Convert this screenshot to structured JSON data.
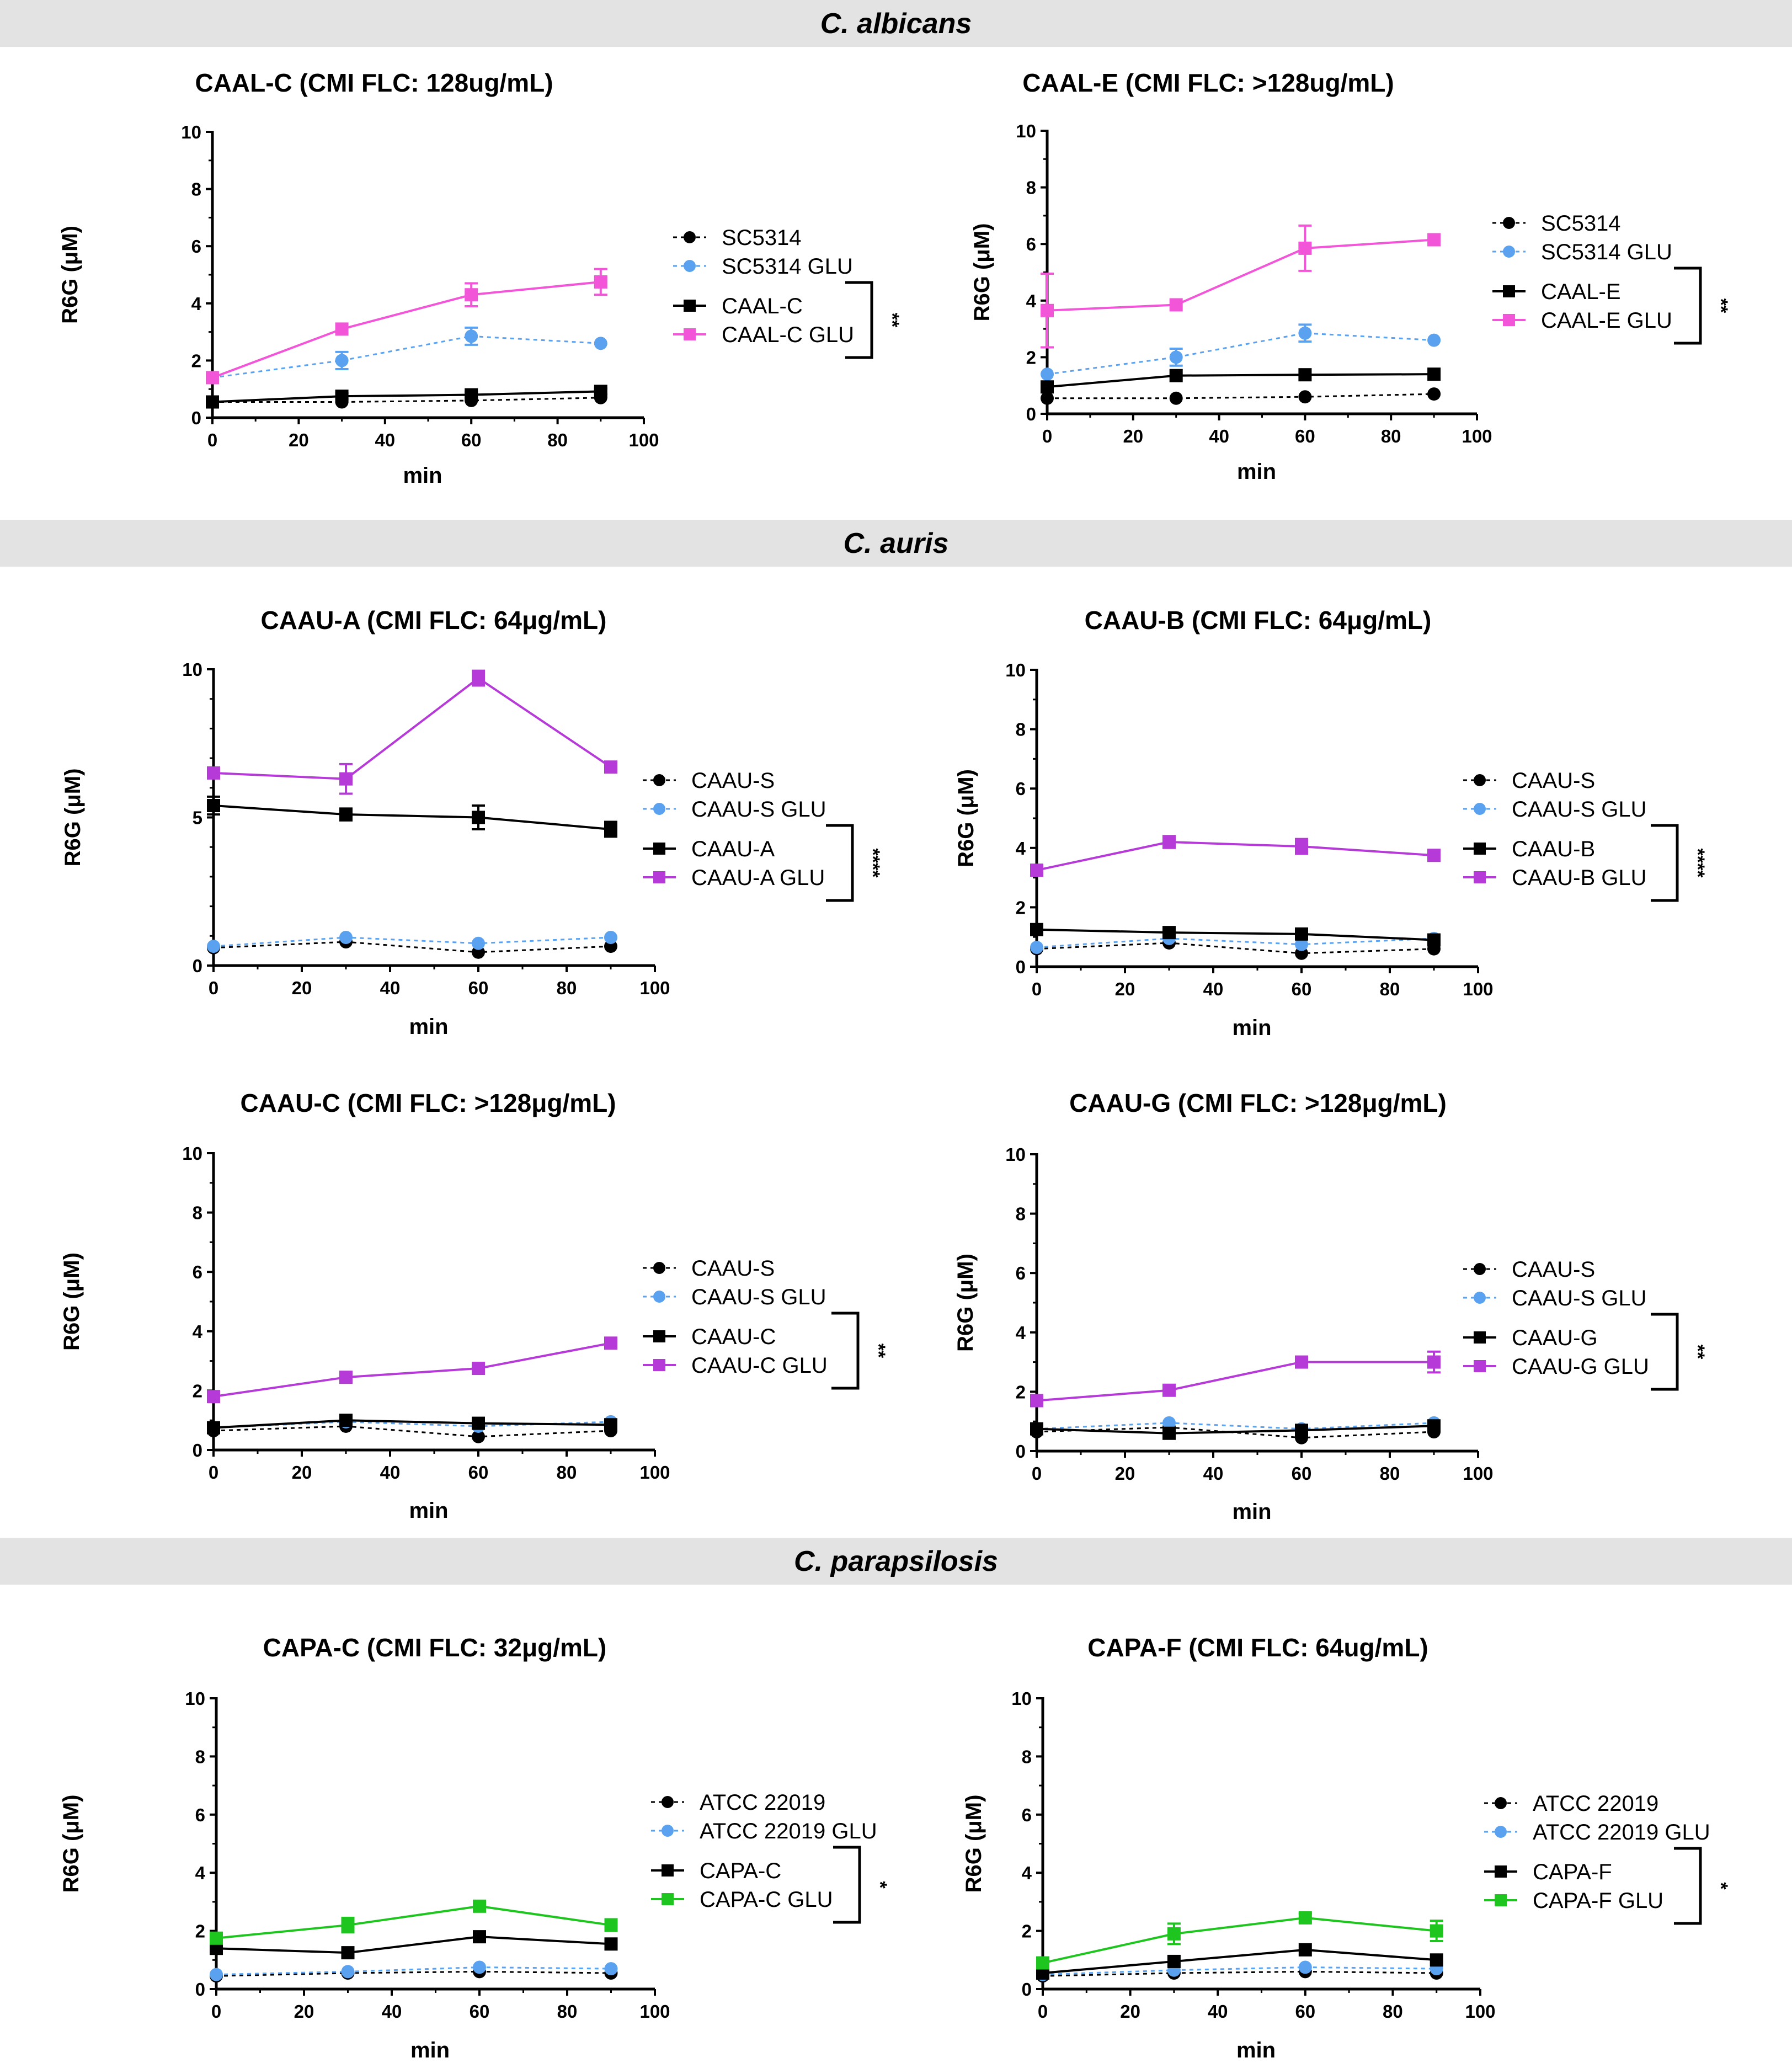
{
  "sections": [
    "C. albicans",
    "C. auris",
    "C. parapsilosis"
  ],
  "colors": {
    "black": "#000000",
    "blue": "#5aa2f0",
    "pink": "#f255d8",
    "purple": "#b63ad8",
    "green": "#1fc51f"
  },
  "chart_data": [
    {
      "type": "line",
      "title": "CAAL-C (CMI FLC: 128ug/mL)",
      "xlabel": "min",
      "ylabel": "R6G (μM)",
      "xlim": [
        0,
        100
      ],
      "ylim": [
        0,
        10
      ],
      "xticks": [
        "0",
        "20",
        "40",
        "60",
        "80",
        "100"
      ],
      "yticks": [
        "0",
        "2",
        "4",
        "6",
        "8",
        "10"
      ],
      "x": [
        0,
        30,
        60,
        90
      ],
      "series": [
        {
          "name": "SC5314",
          "values": [
            0.55,
            0.55,
            0.6,
            0.7
          ],
          "color": "black",
          "marker": "circle",
          "dashed": true
        },
        {
          "name": "SC5314 GLU",
          "values": [
            1.4,
            2.0,
            2.85,
            2.6
          ],
          "errors": [
            0,
            0.3,
            0.3,
            0
          ],
          "color": "blue",
          "marker": "circle",
          "dashed": true
        },
        {
          "name": "CAAL-C",
          "values": [
            0.55,
            0.75,
            0.8,
            0.92
          ],
          "errors": [
            0,
            0.1,
            0.1,
            0.1
          ],
          "color": "black",
          "marker": "square",
          "dashed": false
        },
        {
          "name": "CAAL-C GLU",
          "values": [
            1.4,
            3.1,
            4.3,
            4.75
          ],
          "errors": [
            0,
            0,
            0.4,
            0.45
          ],
          "color": "pink",
          "marker": "square",
          "dashed": false
        }
      ],
      "significance": "**"
    },
    {
      "type": "line",
      "title": "CAAL-E (CMI FLC: >128ug/mL)",
      "xlabel": "min",
      "ylabel": "R6G (μM)",
      "xlim": [
        0,
        100
      ],
      "ylim": [
        0,
        10
      ],
      "xticks": [
        "0",
        "20",
        "40",
        "60",
        "80",
        "100"
      ],
      "yticks": [
        "0",
        "2",
        "4",
        "6",
        "8",
        "10"
      ],
      "x": [
        0,
        30,
        60,
        90
      ],
      "series": [
        {
          "name": "SC5314",
          "values": [
            0.55,
            0.55,
            0.6,
            0.7
          ],
          "color": "black",
          "marker": "circle",
          "dashed": true
        },
        {
          "name": "SC5314 GLU",
          "values": [
            1.4,
            2.0,
            2.85,
            2.6
          ],
          "errors": [
            0,
            0.3,
            0.3,
            0
          ],
          "color": "blue",
          "marker": "circle",
          "dashed": true
        },
        {
          "name": "CAAL-E",
          "values": [
            0.95,
            1.35,
            1.38,
            1.4
          ],
          "color": "black",
          "marker": "square",
          "dashed": false
        },
        {
          "name": "CAAL-E GLU",
          "values": [
            3.65,
            3.85,
            5.85,
            6.15
          ],
          "errors": [
            1.3,
            0,
            0.8,
            0
          ],
          "color": "pink",
          "marker": "square",
          "dashed": false
        }
      ],
      "significance": "**"
    },
    {
      "type": "line",
      "title": "CAAU-A (CMI FLC: 64μg/mL)",
      "xlabel": "min",
      "ylabel": "R6G (μM)",
      "xlim": [
        0,
        100
      ],
      "ylim": [
        0,
        10
      ],
      "xticks": [
        "0",
        "20",
        "40",
        "60",
        "80",
        "100"
      ],
      "yticks": [
        "0",
        "5",
        "10"
      ],
      "x": [
        0,
        30,
        60,
        90
      ],
      "series": [
        {
          "name": "CAAU-S",
          "values": [
            0.6,
            0.8,
            0.45,
            0.65
          ],
          "color": "black",
          "marker": "circle",
          "dashed": true
        },
        {
          "name": "CAAU-S GLU",
          "values": [
            0.65,
            0.95,
            0.75,
            0.95
          ],
          "color": "blue",
          "marker": "circle",
          "dashed": true
        },
        {
          "name": "CAAU-A",
          "values": [
            5.4,
            5.1,
            5.0,
            4.6
          ],
          "errors": [
            0.3,
            0.2,
            0.4,
            0.25
          ],
          "color": "black",
          "marker": "square",
          "dashed": false
        },
        {
          "name": "CAAU-A GLU",
          "values": [
            6.5,
            6.3,
            9.7,
            6.7
          ],
          "errors": [
            0,
            0.5,
            0.25,
            0
          ],
          "color": "purple",
          "marker": "square",
          "dashed": false
        }
      ],
      "significance": "****"
    },
    {
      "type": "line",
      "title": "CAAU-B (CMI FLC: 64μg/mL)",
      "xlabel": "min",
      "ylabel": "R6G (μM)",
      "xlim": [
        0,
        100
      ],
      "ylim": [
        0,
        10
      ],
      "xticks": [
        "0",
        "20",
        "40",
        "60",
        "80",
        "100"
      ],
      "yticks": [
        "0",
        "2",
        "4",
        "6",
        "8",
        "10"
      ],
      "x": [
        0,
        30,
        60,
        90
      ],
      "series": [
        {
          "name": "CAAU-S",
          "values": [
            0.6,
            0.8,
            0.45,
            0.6
          ],
          "color": "black",
          "marker": "circle",
          "dashed": true
        },
        {
          "name": "CAAU-S GLU",
          "values": [
            0.65,
            0.95,
            0.75,
            0.95
          ],
          "color": "blue",
          "marker": "circle",
          "dashed": true
        },
        {
          "name": "CAAU-B",
          "values": [
            1.25,
            1.15,
            1.1,
            0.9
          ],
          "color": "black",
          "marker": "square",
          "dashed": false
        },
        {
          "name": "CAAU-B GLU",
          "values": [
            3.25,
            4.2,
            4.05,
            3.75
          ],
          "errors": [
            0,
            0.2,
            0.25,
            0
          ],
          "color": "purple",
          "marker": "square",
          "dashed": false
        }
      ],
      "significance": "****"
    },
    {
      "type": "line",
      "title": "CAAU-C (CMI FLC: >128μg/mL)",
      "xlabel": "min",
      "ylabel": "R6G (μM)",
      "xlim": [
        0,
        100
      ],
      "ylim": [
        0,
        10
      ],
      "xticks": [
        "0",
        "20",
        "40",
        "60",
        "80",
        "100"
      ],
      "yticks": [
        "0",
        "2",
        "4",
        "6",
        "8",
        "10"
      ],
      "x": [
        0,
        30,
        60,
        90
      ],
      "series": [
        {
          "name": "CAAU-S",
          "values": [
            0.65,
            0.8,
            0.45,
            0.65
          ],
          "color": "black",
          "marker": "circle",
          "dashed": true
        },
        {
          "name": "CAAU-S GLU",
          "values": [
            0.75,
            0.95,
            0.8,
            0.95
          ],
          "color": "blue",
          "marker": "circle",
          "dashed": true
        },
        {
          "name": "CAAU-C",
          "values": [
            0.75,
            1.0,
            0.9,
            0.85
          ],
          "color": "black",
          "marker": "square",
          "dashed": false
        },
        {
          "name": "CAAU-C GLU",
          "values": [
            1.8,
            2.45,
            2.75,
            3.6
          ],
          "color": "purple",
          "marker": "square",
          "dashed": false
        }
      ],
      "significance": "**"
    },
    {
      "type": "line",
      "title": "CAAU-G (CMI FLC: >128μg/mL)",
      "xlabel": "min",
      "ylabel": "R6G (μM)",
      "xlim": [
        0,
        100
      ],
      "ylim": [
        0,
        10
      ],
      "xticks": [
        "0",
        "20",
        "40",
        "60",
        "80",
        "100"
      ],
      "yticks": [
        "0",
        "2",
        "4",
        "6",
        "8",
        "10"
      ],
      "x": [
        0,
        30,
        60,
        90
      ],
      "series": [
        {
          "name": "CAAU-S",
          "values": [
            0.65,
            0.8,
            0.45,
            0.65
          ],
          "color": "black",
          "marker": "circle",
          "dashed": true
        },
        {
          "name": "CAAU-S GLU",
          "values": [
            0.75,
            0.95,
            0.75,
            0.95
          ],
          "color": "blue",
          "marker": "circle",
          "dashed": true
        },
        {
          "name": "CAAU-G",
          "values": [
            0.75,
            0.6,
            0.7,
            0.85
          ],
          "color": "black",
          "marker": "square",
          "dashed": false
        },
        {
          "name": "CAAU-G GLU",
          "values": [
            1.7,
            2.05,
            3.0,
            3.0
          ],
          "errors": [
            0,
            0,
            0,
            0.35
          ],
          "color": "purple",
          "marker": "square",
          "dashed": false
        }
      ],
      "significance": "**"
    },
    {
      "type": "line",
      "title": "CAPA-C (CMI FLC: 32μg/mL)",
      "xlabel": "min",
      "ylabel": "R6G (μM)",
      "xlim": [
        0,
        100
      ],
      "ylim": [
        0,
        10
      ],
      "xticks": [
        "0",
        "20",
        "40",
        "60",
        "80",
        "100"
      ],
      "yticks": [
        "0",
        "2",
        "4",
        "6",
        "8",
        "10"
      ],
      "x": [
        0,
        30,
        60,
        90
      ],
      "series": [
        {
          "name": "ATCC 22019",
          "values": [
            0.45,
            0.55,
            0.6,
            0.55
          ],
          "color": "black",
          "marker": "circle",
          "dashed": true
        },
        {
          "name": "ATCC 22019 GLU",
          "values": [
            0.5,
            0.6,
            0.75,
            0.7
          ],
          "color": "blue",
          "marker": "circle",
          "dashed": true
        },
        {
          "name": "CAPA-C",
          "values": [
            1.4,
            1.25,
            1.8,
            1.55
          ],
          "color": "black",
          "marker": "square",
          "dashed": false
        },
        {
          "name": "CAPA-C GLU",
          "values": [
            1.75,
            2.2,
            2.85,
            2.2
          ],
          "errors": [
            0,
            0.25,
            0,
            0.2
          ],
          "color": "green",
          "marker": "square",
          "dashed": false
        }
      ],
      "significance": "*"
    },
    {
      "type": "line",
      "title": "CAPA-F (CMI FLC: 64ug/mL)",
      "xlabel": "min",
      "ylabel": "R6G (μM)",
      "xlim": [
        0,
        100
      ],
      "ylim": [
        0,
        10
      ],
      "xticks": [
        "0",
        "20",
        "40",
        "60",
        "80",
        "100"
      ],
      "yticks": [
        "0",
        "2",
        "4",
        "6",
        "8",
        "10"
      ],
      "x": [
        0,
        30,
        60,
        90
      ],
      "series": [
        {
          "name": "ATCC 22019",
          "values": [
            0.45,
            0.55,
            0.6,
            0.55
          ],
          "color": "black",
          "marker": "circle",
          "dashed": true
        },
        {
          "name": "ATCC 22019 GLU",
          "values": [
            0.5,
            0.65,
            0.75,
            0.7
          ],
          "color": "blue",
          "marker": "circle",
          "dashed": true
        },
        {
          "name": "CAPA-F",
          "values": [
            0.55,
            0.95,
            1.35,
            1.0
          ],
          "color": "black",
          "marker": "square",
          "dashed": false
        },
        {
          "name": "CAPA-F GLU",
          "values": [
            0.9,
            1.9,
            2.45,
            2.0
          ],
          "errors": [
            0,
            0.35,
            0.15,
            0.35
          ],
          "color": "green",
          "marker": "square",
          "dashed": false
        }
      ],
      "significance": "*"
    }
  ]
}
